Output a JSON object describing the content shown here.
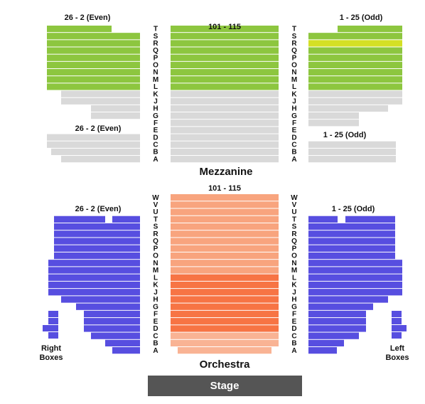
{
  "mezzanine": {
    "title": "Mezzanine",
    "center_label": "101 - 115",
    "left_label_upper": "26 - 2 (Even)",
    "right_label_upper": "1 - 25 (Odd)",
    "left_label_lower": "26 - 2 (Even)",
    "right_label_lower": "1 - 25 (Odd)",
    "rows": [
      "T",
      "S",
      "R",
      "Q",
      "P",
      "O",
      "N",
      "M",
      "L",
      "K",
      "J",
      "H",
      "G",
      "F",
      "E",
      "D",
      "C",
      "B",
      "A"
    ]
  },
  "orchestra": {
    "title": "Orchestra",
    "center_label": "101 - 115",
    "left_label": "26 - 2 (Even)",
    "right_label": "1 - 25 (Odd)",
    "rows": [
      "W",
      "V",
      "U",
      "T",
      "S",
      "R",
      "Q",
      "P",
      "O",
      "N",
      "M",
      "L",
      "K",
      "J",
      "H",
      "G",
      "F",
      "E",
      "D",
      "C",
      "B",
      "A"
    ],
    "right_boxes": [
      "Right",
      "Boxes"
    ],
    "left_boxes": [
      "Left",
      "Boxes"
    ]
  },
  "stage": "Stage"
}
